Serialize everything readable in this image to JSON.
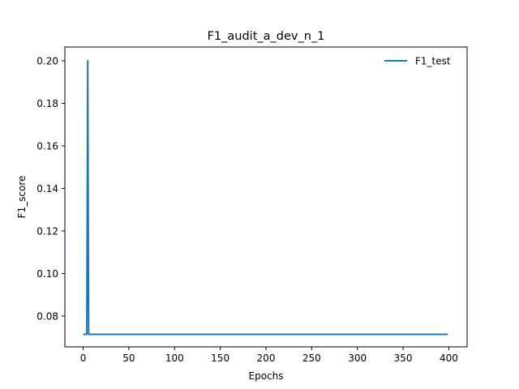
{
  "chart_data": {
    "type": "line",
    "title": "F1_audit_a_dev_n_1",
    "xlabel": "Epochs",
    "ylabel": "F1_score",
    "xlim": [
      -20,
      420
    ],
    "ylim": [
      0.0655,
      0.2065
    ],
    "xticks": [
      0,
      50,
      100,
      150,
      200,
      250,
      300,
      350,
      400
    ],
    "yticks": [
      0.08,
      0.1,
      0.12,
      0.14,
      0.16,
      0.18,
      0.2
    ],
    "ytick_labels": [
      "0.08",
      "0.10",
      "0.12",
      "0.14",
      "0.16",
      "0.18",
      "0.20"
    ],
    "grid": false,
    "legend_position": "upper right",
    "series": [
      {
        "name": "F1_test",
        "color": "#1f77b4",
        "x": [
          0,
          4,
          5,
          6,
          399
        ],
        "y": [
          0.0714,
          0.0714,
          0.2,
          0.0714,
          0.0714
        ]
      }
    ]
  }
}
